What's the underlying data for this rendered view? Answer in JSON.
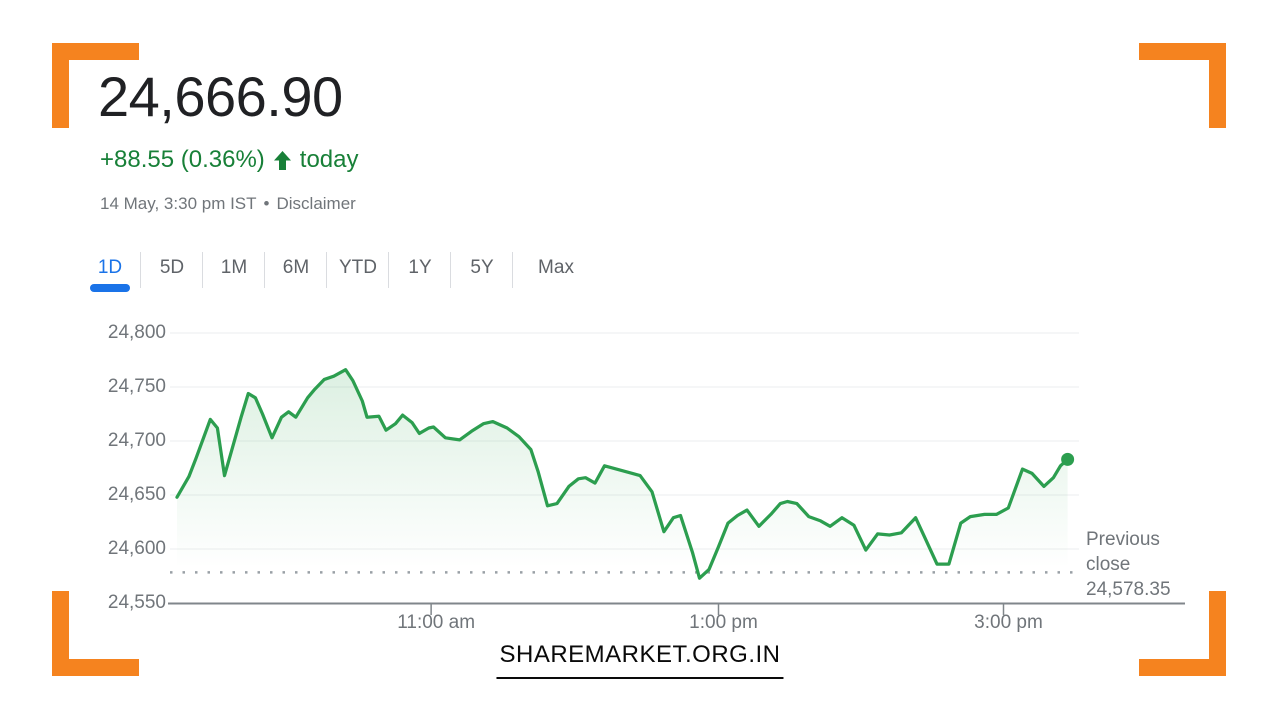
{
  "brand": {
    "watermark": "SHAREMARKET.ORG.IN",
    "accent_orange": "#F5831F"
  },
  "header": {
    "price": "24,666.90",
    "change": "+88.55 (0.36%)",
    "change_suffix": "today",
    "change_color": "#188038",
    "icons": {
      "change_direction": "up-arrow-icon"
    },
    "meta": {
      "timestamp": "14 May, 3:30 pm IST",
      "separator": "•",
      "disclaimer": "Disclaimer"
    }
  },
  "tabs": {
    "active_color": "#1a73e8",
    "inactive_color": "#5f6368",
    "items": [
      {
        "label": "1D",
        "active": true
      },
      {
        "label": "5D",
        "active": false
      },
      {
        "label": "1M",
        "active": false
      },
      {
        "label": "6M",
        "active": false
      },
      {
        "label": "YTD",
        "active": false
      },
      {
        "label": "1Y",
        "active": false
      },
      {
        "label": "5Y",
        "active": false
      },
      {
        "label": "Max",
        "active": false
      }
    ]
  },
  "chart_data": {
    "type": "line",
    "title": "",
    "xlabel": "",
    "ylabel": "",
    "ylim": [
      24550,
      24800
    ],
    "grid": true,
    "line_color": "#2c9e4f",
    "fill_color": "#34a853",
    "y_ticks": [
      {
        "value": 24800,
        "label": "24,800"
      },
      {
        "value": 24750,
        "label": "24,750"
      },
      {
        "value": 24700,
        "label": "24,700"
      },
      {
        "value": 24650,
        "label": "24,650"
      },
      {
        "value": 24600,
        "label": "24,600"
      },
      {
        "value": 24550,
        "label": "24,550"
      }
    ],
    "x_ticks": [
      {
        "minute": 107,
        "label": "11:00 am"
      },
      {
        "minute": 228,
        "label": "1:00 pm"
      },
      {
        "minute": 348,
        "label": "3:00 pm"
      }
    ],
    "x_range_minutes": [
      0,
      375
    ],
    "previous_close": {
      "label": "Previous close",
      "display": "24,578.35",
      "value": 24578.35
    },
    "series": [
      {
        "name": "index-price",
        "points": [
          [
            0,
            24648
          ],
          [
            5,
            24667
          ],
          [
            8,
            24684
          ],
          [
            14,
            24720
          ],
          [
            17,
            24712
          ],
          [
            20,
            24668
          ],
          [
            23,
            24691
          ],
          [
            27,
            24722
          ],
          [
            30,
            24744
          ],
          [
            33,
            24740
          ],
          [
            36,
            24725
          ],
          [
            40,
            24703
          ],
          [
            44,
            24722
          ],
          [
            47,
            24727
          ],
          [
            50,
            24722
          ],
          [
            55,
            24740
          ],
          [
            58,
            24748
          ],
          [
            62,
            24757
          ],
          [
            66,
            24760
          ],
          [
            71,
            24766
          ],
          [
            74,
            24756
          ],
          [
            78,
            24737
          ],
          [
            80,
            24722
          ],
          [
            85,
            24723
          ],
          [
            88,
            24710
          ],
          [
            92,
            24716
          ],
          [
            95,
            24724
          ],
          [
            99,
            24717
          ],
          [
            102,
            24707
          ],
          [
            106,
            24712
          ],
          [
            108,
            24713
          ],
          [
            113,
            24703
          ],
          [
            119,
            24701
          ],
          [
            124,
            24709
          ],
          [
            129,
            24716
          ],
          [
            133,
            24718
          ],
          [
            139,
            24712
          ],
          [
            144,
            24704
          ],
          [
            149,
            24692
          ],
          [
            152,
            24672
          ],
          [
            156,
            24640
          ],
          [
            160,
            24642
          ],
          [
            165,
            24658
          ],
          [
            169,
            24665
          ],
          [
            172,
            24666
          ],
          [
            176,
            24661
          ],
          [
            180,
            24677
          ],
          [
            185,
            24674
          ],
          [
            190,
            24671
          ],
          [
            195,
            24668
          ],
          [
            200,
            24653
          ],
          [
            205,
            24616
          ],
          [
            209,
            24629
          ],
          [
            212,
            24631
          ],
          [
            217,
            24597
          ],
          [
            220,
            24573
          ],
          [
            224,
            24581
          ],
          [
            228,
            24602
          ],
          [
            232,
            24624
          ],
          [
            236,
            24631
          ],
          [
            240,
            24636
          ],
          [
            245,
            24621
          ],
          [
            250,
            24632
          ],
          [
            254,
            24642
          ],
          [
            257,
            24644
          ],
          [
            261,
            24642
          ],
          [
            266,
            24630
          ],
          [
            271,
            24626
          ],
          [
            275,
            24621
          ],
          [
            280,
            24629
          ],
          [
            285,
            24622
          ],
          [
            290,
            24599
          ],
          [
            295,
            24614
          ],
          [
            300,
            24613
          ],
          [
            305,
            24615
          ],
          [
            311,
            24629
          ],
          [
            315,
            24610
          ],
          [
            320,
            24586
          ],
          [
            325,
            24586
          ],
          [
            330,
            24624
          ],
          [
            334,
            24630
          ],
          [
            340,
            24632
          ],
          [
            345,
            24632
          ],
          [
            350,
            24638
          ],
          [
            356,
            24674
          ],
          [
            360,
            24670
          ],
          [
            365,
            24658
          ],
          [
            369,
            24666
          ],
          [
            372,
            24677
          ],
          [
            375,
            24683
          ]
        ]
      }
    ]
  }
}
